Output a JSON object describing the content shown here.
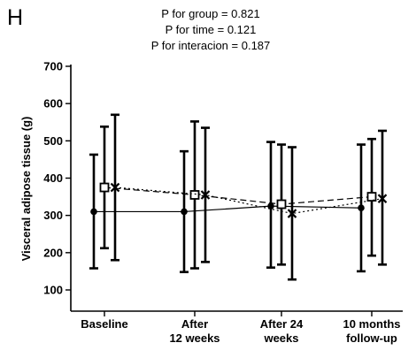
{
  "panel_label": "H",
  "annotations": [
    "P for group = 0.821",
    "P for time = 0.121",
    "P for interacion = 0.187"
  ],
  "chart_data": {
    "type": "line",
    "title": "",
    "xlabel": "",
    "ylabel": "Visceral adipose tissue (g)",
    "ylim": [
      100,
      700
    ],
    "yticks": [
      100,
      200,
      300,
      400,
      500,
      600,
      700
    ],
    "categories": [
      "Baseline",
      "After\n12 weeks",
      "After 24\nweeks",
      "10 months\nfollow-up"
    ],
    "grid": false,
    "legend": "none",
    "series": [
      {
        "style": "solid",
        "marker": "filled-circle",
        "values": [
          310,
          310,
          325,
          320
        ],
        "error_low": [
          158,
          148,
          160,
          150
        ],
        "error_high": [
          463,
          472,
          497,
          490
        ]
      },
      {
        "style": "dashed",
        "marker": "open-square",
        "values": [
          375,
          355,
          330,
          350
        ],
        "error_low": [
          212,
          158,
          168,
          192
        ],
        "error_high": [
          538,
          552,
          490,
          505
        ]
      },
      {
        "style": "dotted",
        "marker": "x",
        "values": [
          375,
          355,
          305,
          345
        ],
        "error_low": [
          180,
          175,
          128,
          168
        ],
        "error_high": [
          570,
          535,
          483,
          527
        ]
      }
    ]
  }
}
